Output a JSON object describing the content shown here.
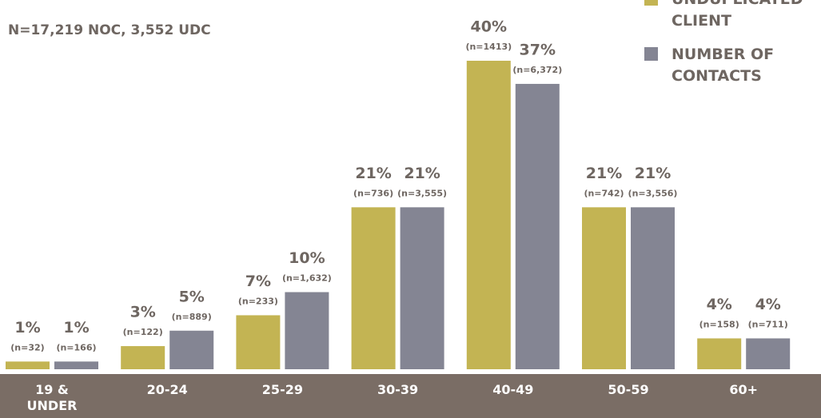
{
  "chart_data": {
    "type": "bar",
    "title": "N=17,219  NOC, 3,552 UDC",
    "categories": [
      "19 & UNDER",
      "20-24",
      "25-29",
      "30-39",
      "40-49",
      "50-59",
      "60+"
    ],
    "series": [
      {
        "name": "UNDUPLICATED CLIENT",
        "color": "#c3b453",
        "values": [
          1,
          3,
          7,
          21,
          40,
          21,
          4
        ],
        "value_labels": [
          "1%",
          "3%",
          "7%",
          "21%",
          "40%",
          "21%",
          "4%"
        ],
        "n_labels": [
          "(n=32)",
          "(n=122)",
          "(n=233)",
          "(n=736)",
          "(n=1413)",
          "(n=742)",
          "(n=158)"
        ]
      },
      {
        "name": "NUMBER OF CONTACTS",
        "color": "#848593",
        "values": [
          1,
          5,
          10,
          21,
          37,
          21,
          4
        ],
        "value_labels": [
          "1%",
          "5%",
          "10%",
          "21%",
          "37%",
          "21%",
          "4%"
        ],
        "n_labels": [
          "(n=166)",
          "(n=889)",
          "(n=1,632)",
          "(n=3,555)",
          "(n=6,372)",
          "(n=3,556)",
          "(n=711)"
        ]
      }
    ],
    "ylim": [
      0,
      40
    ],
    "axis_color": "#7a6d65"
  }
}
